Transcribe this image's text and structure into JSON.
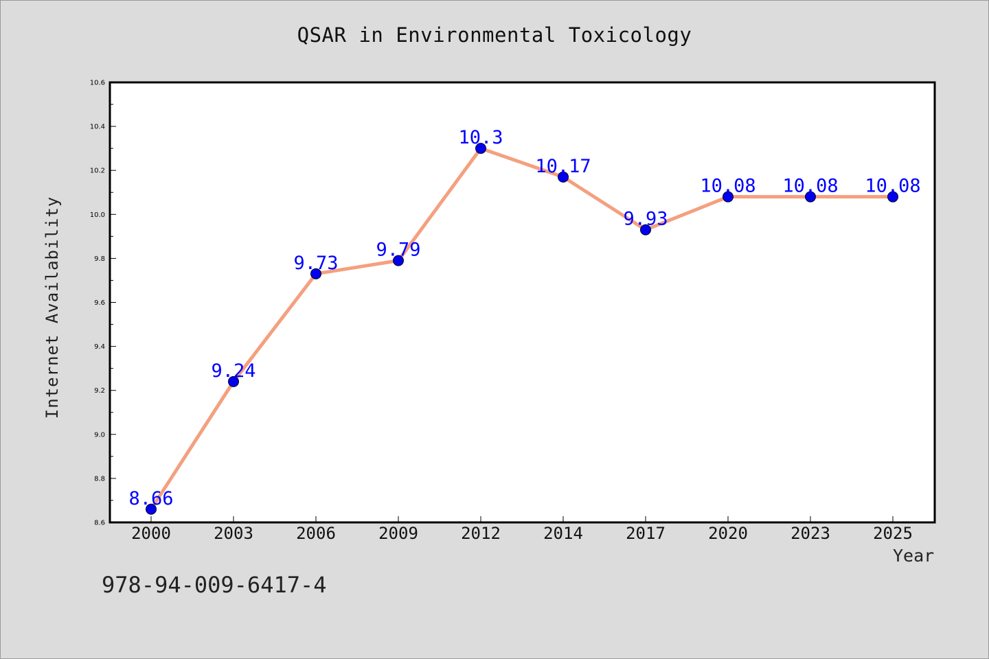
{
  "chart_data": {
    "type": "line",
    "title": "QSAR in Environmental Toxicology",
    "xlabel": "Year",
    "ylabel": "Internet Availability",
    "categories": [
      "2000",
      "2003",
      "2006",
      "2009",
      "2012",
      "2014",
      "2017",
      "2020",
      "2023",
      "2025"
    ],
    "series": [
      {
        "values": [
          8.66,
          9.24,
          9.73,
          9.79,
          10.3,
          10.17,
          9.93,
          10.08,
          10.08,
          10.08
        ],
        "labels": [
          "8.66",
          "9.24",
          "9.73",
          "9.79",
          "10.3",
          "10.17",
          "9.93",
          "10.08",
          "10.08",
          "10.08"
        ],
        "line_color": "#f4a07f",
        "marker_color": "#0000ee"
      }
    ],
    "ylim": [
      8.6,
      10.6
    ],
    "yticks": [
      "8.6",
      "8.8",
      "9.0",
      "9.2",
      "9.4",
      "9.6",
      "9.8",
      "10.0",
      "10.2",
      "10.4",
      "10.6"
    ],
    "grid": false,
    "legend": false,
    "data_label_color": "#0000ff"
  },
  "footer": {
    "isbn": "978-94-009-6417-4"
  }
}
